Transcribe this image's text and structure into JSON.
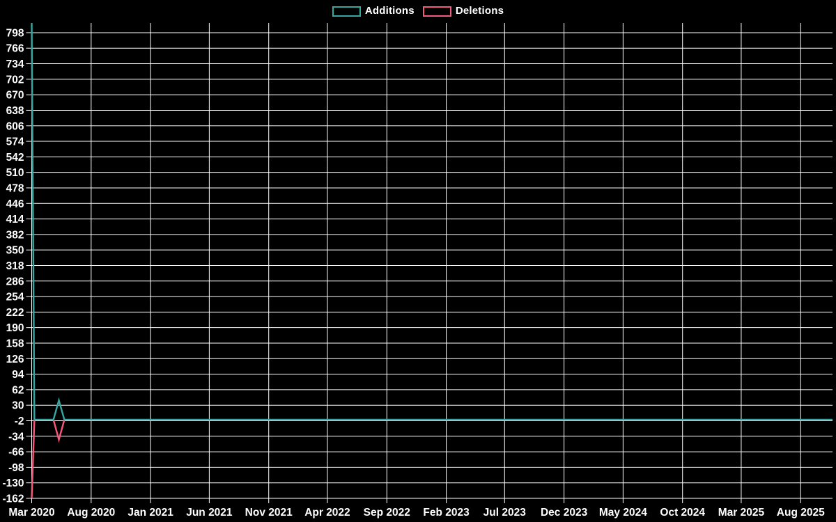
{
  "chart_data": {
    "type": "line",
    "title": "",
    "legend_position": "top-center",
    "background_color": "#000000",
    "grid_color": "#ffffff",
    "text_color": "#ffffff",
    "x_axis": {
      "start_date": "2020-03-01",
      "end_date": "2025-10-22",
      "ticks": [
        {
          "date": "2020-03-01",
          "label": "Mar 2020"
        },
        {
          "date": "2020-08-01",
          "label": "Aug 2020"
        },
        {
          "date": "2021-01-01",
          "label": "Jan 2021"
        },
        {
          "date": "2021-06-01",
          "label": "Jun 2021"
        },
        {
          "date": "2021-11-01",
          "label": "Nov 2021"
        },
        {
          "date": "2022-04-01",
          "label": "Apr 2022"
        },
        {
          "date": "2022-09-01",
          "label": "Sep 2022"
        },
        {
          "date": "2023-02-01",
          "label": "Feb 2023"
        },
        {
          "date": "2023-07-01",
          "label": "Jul 2023"
        },
        {
          "date": "2023-12-01",
          "label": "Dec 2023"
        },
        {
          "date": "2024-05-01",
          "label": "May 2024"
        },
        {
          "date": "2024-10-01",
          "label": "Oct 2024"
        },
        {
          "date": "2025-03-01",
          "label": "Mar 2025"
        },
        {
          "date": "2025-08-01",
          "label": "Aug 2025"
        }
      ]
    },
    "y_axis": {
      "min": -162,
      "max": 818,
      "tick_step": 32,
      "ticks": [
        798,
        766,
        734,
        702,
        670,
        638,
        606,
        574,
        542,
        510,
        478,
        446,
        414,
        382,
        350,
        318,
        286,
        254,
        222,
        190,
        158,
        126,
        94,
        62,
        30,
        -2,
        -34,
        -66,
        -98,
        -130,
        -162
      ]
    },
    "series": [
      {
        "name": "Additions",
        "color": "#35a8a2",
        "points": [
          [
            "2020-03-01",
            818
          ],
          [
            "2020-03-08",
            0
          ],
          [
            "2020-04-26",
            0
          ],
          [
            "2020-05-10",
            40
          ],
          [
            "2020-05-24",
            0
          ],
          [
            "2025-10-22",
            0
          ]
        ]
      },
      {
        "name": "Deletions",
        "color": "#f8587c",
        "points": [
          [
            "2020-03-01",
            -162
          ],
          [
            "2020-03-08",
            0
          ],
          [
            "2020-04-26",
            0
          ],
          [
            "2020-05-10",
            -41
          ],
          [
            "2020-05-24",
            0
          ],
          [
            "2025-10-22",
            0
          ]
        ]
      }
    ]
  }
}
